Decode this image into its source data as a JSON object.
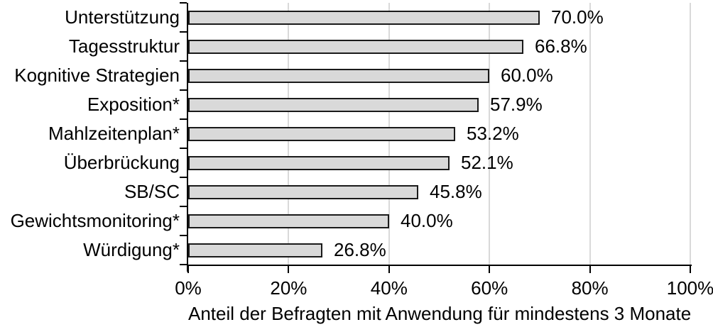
{
  "chart_data": {
    "type": "bar",
    "orientation": "horizontal",
    "categories": [
      "Unterstützung",
      "Tagesstruktur",
      "Kognitive Strategien",
      "Exposition*",
      "Mahlzeitenplan*",
      "Überbrückung",
      "SB/SC",
      "Gewichtsmonitoring*",
      "Würdigung*"
    ],
    "values": [
      70.0,
      66.8,
      60.0,
      57.9,
      53.2,
      52.1,
      45.8,
      40.0,
      26.8
    ],
    "value_labels": [
      "70.0%",
      "66.8%",
      "60.0%",
      "57.9%",
      "53.2%",
      "52.1%",
      "45.8%",
      "40.0%",
      "26.8%"
    ],
    "title": "",
    "xlabel": "Anteil der Befragten mit Anwendung für mindestens 3 Monate",
    "ylabel": "",
    "xlim": [
      0,
      100
    ],
    "x_ticks": [
      "0%",
      "20%",
      "40%",
      "60%",
      "80%",
      "100%"
    ],
    "x_tick_values": [
      0,
      20,
      40,
      60,
      80,
      100
    ],
    "grid": "vertical-gridlines-on",
    "legend": "none",
    "colors": {
      "bar_fill": "#d9d9d9",
      "bar_border": "#1a1a1a",
      "gridline": "#d9d9d9",
      "axis": "#000000",
      "text": "#000000",
      "background": "#ffffff"
    }
  }
}
